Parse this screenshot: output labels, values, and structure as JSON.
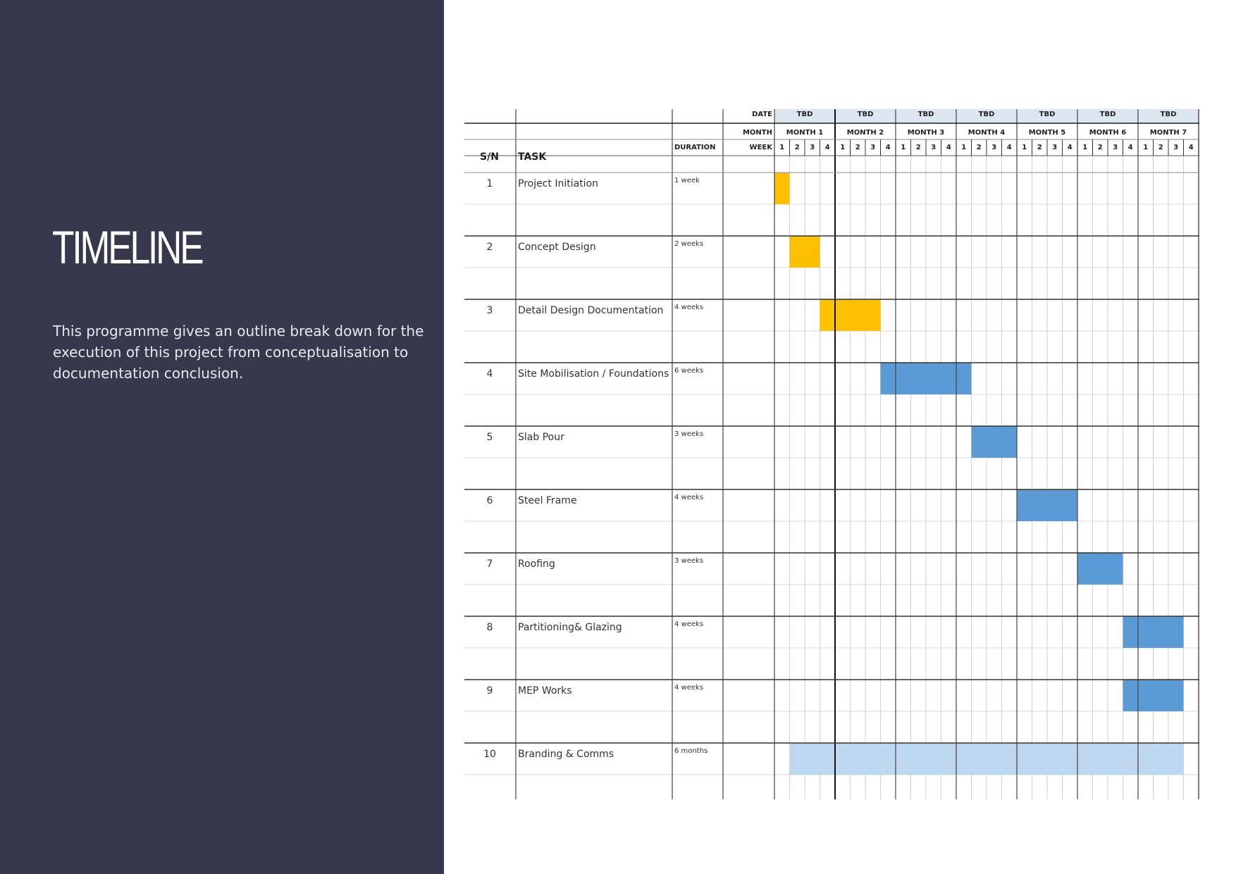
{
  "slide": {
    "title": "TIMELINE",
    "description": "This programme gives an outline break down for the execution of this project from conceptualisation to documentation conclusion."
  },
  "colors": {
    "sidebar": "#35394b",
    "phase_design": "#ffc000",
    "phase_construction": "#5b9bd5",
    "phase_ongoing": "#bdd7ee",
    "header_fill": "#dce6f1"
  },
  "header": {
    "sn": "S/N",
    "task": "TASK",
    "duration": "DURATION",
    "date_label": "DATE",
    "month_label": "MONTH",
    "week_label": "WEEK",
    "dates": [
      "TBD",
      "TBD",
      "TBD",
      "TBD",
      "TBD",
      "TBD",
      "TBD"
    ],
    "months": [
      "MONTH 1",
      "MONTH 2",
      "MONTH 3",
      "MONTH 4",
      "MONTH 5",
      "MONTH 6",
      "MONTH 7"
    ],
    "weeks": [
      "1",
      "2",
      "3",
      "4"
    ]
  },
  "tasks": [
    {
      "sn": "1",
      "name": "Project Initiation",
      "duration": "1 week",
      "start_week": 1,
      "weeks": 1,
      "phase": "phase_design"
    },
    {
      "sn": "2",
      "name": "Concept Design",
      "duration": "2 weeks",
      "start_week": 2,
      "weeks": 2,
      "phase": "phase_design"
    },
    {
      "sn": "3",
      "name": "Detail Design Documentation",
      "duration": "4 weeks",
      "start_week": 4,
      "weeks": 4,
      "phase": "phase_design"
    },
    {
      "sn": "4",
      "name": "Site Mobilisation / Foundations",
      "duration": "6 weeks",
      "start_week": 8,
      "weeks": 6,
      "phase": "phase_construction"
    },
    {
      "sn": "5",
      "name": "Slab Pour",
      "duration": "3 weeks",
      "start_week": 14,
      "weeks": 3,
      "phase": "phase_construction"
    },
    {
      "sn": "6",
      "name": "Steel Frame",
      "duration": "4 weeks",
      "start_week": 17,
      "weeks": 4,
      "phase": "phase_construction"
    },
    {
      "sn": "7",
      "name": "Roofing",
      "duration": "3 weeks",
      "start_week": 21,
      "weeks": 3,
      "phase": "phase_construction"
    },
    {
      "sn": "8",
      "name": "Partitioning& Glazing",
      "duration": "4 weeks",
      "start_week": 24,
      "weeks": 4,
      "phase": "phase_construction"
    },
    {
      "sn": "9",
      "name": "MEP Works",
      "duration": "4 weeks",
      "start_week": 24,
      "weeks": 4,
      "phase": "phase_construction"
    },
    {
      "sn": "10",
      "name": "Branding & Comms",
      "duration": "6 months",
      "start_week": 2,
      "weeks": 26,
      "phase": "phase_ongoing"
    }
  ]
}
